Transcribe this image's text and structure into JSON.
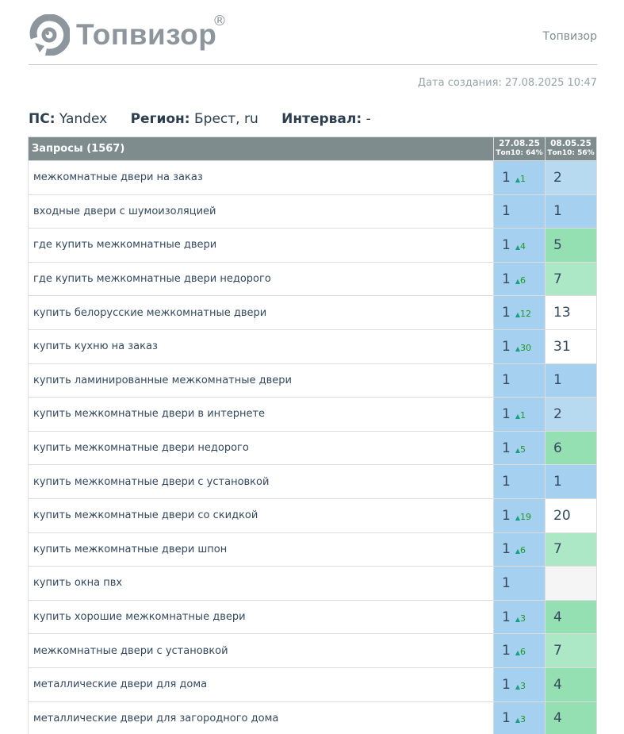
{
  "header": {
    "logo_text": "Топвизор",
    "registered": "®",
    "brand": "Топвизор"
  },
  "created": "Дата создания: 27.08.2025 10:47",
  "params": {
    "ps_label": "ПС:",
    "ps": "Yandex",
    "region_label": "Регион:",
    "region": "Брест, ru",
    "interval_label": "Интервал:",
    "interval": "-"
  },
  "table": {
    "query_header": "Запросы (1567)",
    "dates": [
      {
        "date": "27.08.25",
        "top": "Топ10: 64%"
      },
      {
        "date": "08.05.25",
        "top": "Топ10: 56%"
      }
    ],
    "colors": {
      "blue": "#a5d0ef",
      "lightblue": "#b7daf1",
      "green": "#95e0b3",
      "lightgreen": "#ade8c6",
      "gray": "#f5f5f5",
      "white": "#ffffff"
    },
    "rows": [
      {
        "q": "межкомнатные двери на заказ",
        "p1": "1",
        "c": "1",
        "p2": "2",
        "c2": "lightblue"
      },
      {
        "q": "входные двери с шумоизоляцией",
        "p1": "1",
        "c": "",
        "p2": "1",
        "c2": "blue"
      },
      {
        "q": "где купить межкомнатные двери",
        "p1": "1",
        "c": "4",
        "p2": "5",
        "c2": "green"
      },
      {
        "q": "где купить межкомнатные двери недорого",
        "p1": "1",
        "c": "6",
        "p2": "7",
        "c2": "lightgreen"
      },
      {
        "q": "купить белорусские межкомнатные двери",
        "p1": "1",
        "c": "12",
        "p2": "13",
        "c2": "white"
      },
      {
        "q": "купить кухню на заказ",
        "p1": "1",
        "c": "30",
        "p2": "31",
        "c2": "white"
      },
      {
        "q": "купить ламинированные межкомнатные двери",
        "p1": "1",
        "c": "",
        "p2": "1",
        "c2": "blue"
      },
      {
        "q": "купить межкомнатные двери в интернете",
        "p1": "1",
        "c": "1",
        "p2": "2",
        "c2": "lightblue"
      },
      {
        "q": "купить межкомнатные двери недорого",
        "p1": "1",
        "c": "5",
        "p2": "6",
        "c2": "green"
      },
      {
        "q": "купить межкомнатные двери с установкой",
        "p1": "1",
        "c": "",
        "p2": "1",
        "c2": "blue"
      },
      {
        "q": "купить межкомнатные двери со скидкой",
        "p1": "1",
        "c": "19",
        "p2": "20",
        "c2": "white"
      },
      {
        "q": "купить межкомнатные двери шпон",
        "p1": "1",
        "c": "6",
        "p2": "7",
        "c2": "lightgreen"
      },
      {
        "q": "купить окна пвх",
        "p1": "1",
        "c": "",
        "p2": "",
        "c2": "gray"
      },
      {
        "q": "купить хорошие межкомнатные двери",
        "p1": "1",
        "c": "3",
        "p2": "4",
        "c2": "green"
      },
      {
        "q": "межкомнатные двери с установкой",
        "p1": "1",
        "c": "6",
        "p2": "7",
        "c2": "lightgreen"
      },
      {
        "q": "металлические двери для дома",
        "p1": "1",
        "c": "3",
        "p2": "4",
        "c2": "green"
      },
      {
        "q": "металлические двери для загородного дома",
        "p1": "1",
        "c": "3",
        "p2": "4",
        "c2": "green"
      }
    ]
  }
}
